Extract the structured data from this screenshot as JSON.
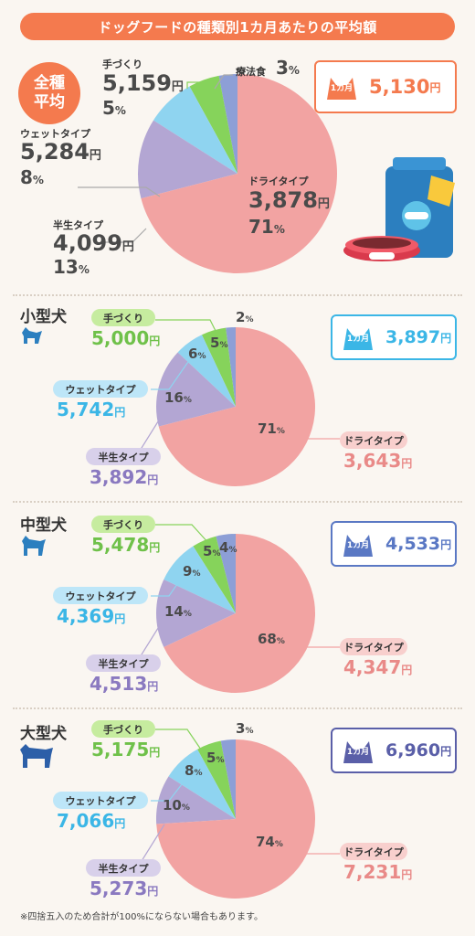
{
  "title": "ドッグフードの種類別1カ月あたりの平均額",
  "footnote": "※四捨五入のため合計が100%にならない場合もあります。",
  "month_tag": "1カ月",
  "yen": "円",
  "pct": "%",
  "colors": {
    "dry": "#f2a3a2",
    "semi": "#b3a6d3",
    "wet": "#8fd4f0",
    "homemade": "#86d35b",
    "therapy": "#8d9fd6",
    "orange": "#f47a4e"
  },
  "all": {
    "badge_line1": "全種",
    "badge_line2": "平均",
    "average": "5,130",
    "dry_label": "ドライタイプ",
    "dry_price": "3,878",
    "dry_pct": "71",
    "semi_label": "半生タイプ",
    "semi_price": "4,099",
    "semi_pct": "13",
    "wet_label": "ウェットタイプ",
    "wet_price": "5,284",
    "wet_pct": "8",
    "homemade_label": "手づくり",
    "homemade_price": "5,159",
    "homemade_pct": "5",
    "therapy_label": "療法食",
    "therapy_pct": "3"
  },
  "small": {
    "label": "小型犬",
    "average": "3,897",
    "homemade_label": "手づくり",
    "homemade_price": "5,000",
    "wet_label": "ウェットタイプ",
    "wet_price": "5,742",
    "semi_label": "半生タイプ",
    "semi_price": "3,892",
    "dry_label": "ドライタイプ",
    "dry_price": "3,643",
    "pct_dry": "71",
    "pct_semi": "16",
    "pct_wet": "6",
    "pct_homemade": "5",
    "pct_therapy": "2"
  },
  "medium": {
    "label": "中型犬",
    "average": "4,533",
    "homemade_label": "手づくり",
    "homemade_price": "5,478",
    "wet_label": "ウェットタイプ",
    "wet_price": "4,369",
    "semi_label": "半生タイプ",
    "semi_price": "4,513",
    "dry_label": "ドライタイプ",
    "dry_price": "4,347",
    "pct_dry": "68",
    "pct_semi": "14",
    "pct_wet": "9",
    "pct_homemade": "5",
    "pct_therapy": "4"
  },
  "large": {
    "label": "大型犬",
    "average": "6,960",
    "homemade_label": "手づくり",
    "homemade_price": "5,175",
    "wet_label": "ウェットタイプ",
    "wet_price": "7,066",
    "semi_label": "半生タイプ",
    "semi_price": "5,273",
    "dry_label": "ドライタイプ",
    "dry_price": "7,231",
    "pct_dry": "74",
    "pct_semi": "10",
    "pct_wet": "8",
    "pct_homemade": "5",
    "pct_therapy": "3"
  },
  "chart_data": [
    {
      "type": "pie",
      "title": "全種平均",
      "labels": [
        "療法食",
        "手づくり",
        "ウェットタイプ",
        "半生タイプ",
        "ドライタイプ"
      ],
      "values": [
        3,
        5,
        8,
        13,
        71
      ],
      "prices": [
        null,
        5159,
        5284,
        4099,
        3878
      ],
      "average": 5130
    },
    {
      "type": "pie",
      "title": "小型犬",
      "labels": [
        "療法食",
        "手づくり",
        "ウェットタイプ",
        "半生タイプ",
        "ドライタイプ"
      ],
      "values": [
        2,
        5,
        6,
        16,
        71
      ],
      "prices": [
        null,
        5000,
        5742,
        3892,
        3643
      ],
      "average": 3897
    },
    {
      "type": "pie",
      "title": "中型犬",
      "labels": [
        "療法食",
        "手づくり",
        "ウェットタイプ",
        "半生タイプ",
        "ドライタイプ"
      ],
      "values": [
        4,
        5,
        9,
        14,
        68
      ],
      "prices": [
        null,
        5478,
        4369,
        4513,
        4347
      ],
      "average": 4533
    },
    {
      "type": "pie",
      "title": "大型犬",
      "labels": [
        "療法食",
        "手づくり",
        "ウェットタイプ",
        "半生タイプ",
        "ドライタイプ"
      ],
      "values": [
        3,
        5,
        8,
        10,
        74
      ],
      "prices": [
        null,
        5175,
        7066,
        5273,
        7231
      ],
      "average": 6960
    }
  ]
}
